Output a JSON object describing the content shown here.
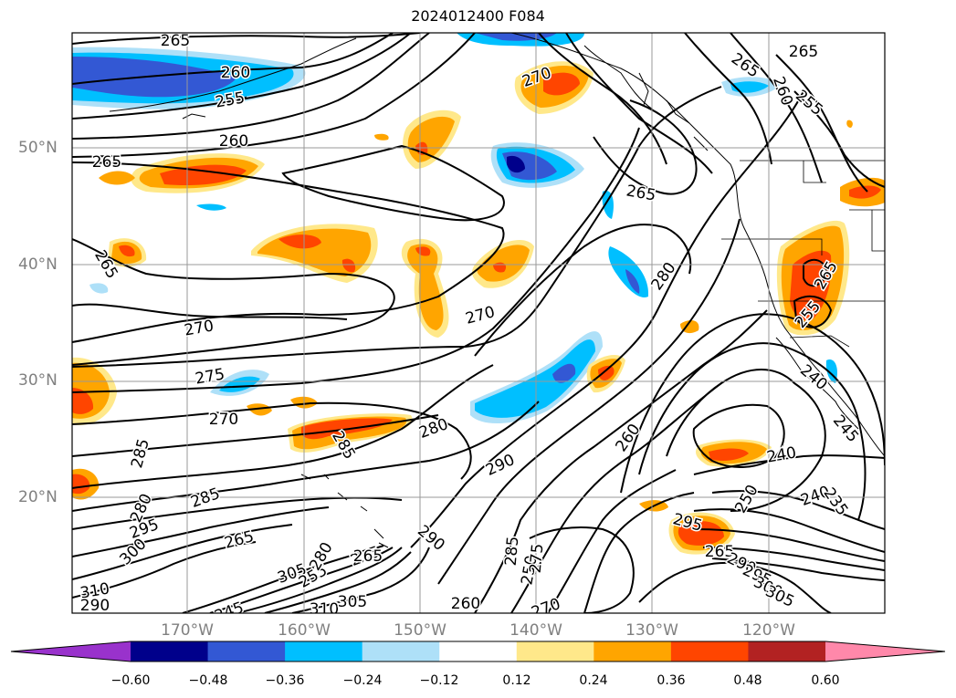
{
  "title": "2024012400 F084",
  "lat_labels": [
    "50°N",
    "40°N",
    "30°N",
    "20°N"
  ],
  "lon_labels": [
    "170°W",
    "160°W",
    "150°W",
    "140°W",
    "130°W",
    "120°W"
  ],
  "colorbar": {
    "ticks": [
      "−0.60",
      "−0.48",
      "−0.36",
      "−0.24",
      "−0.12",
      "0.12",
      "0.24",
      "0.36",
      "0.48",
      "0.60"
    ],
    "colors": [
      "#9932cc",
      "#00008b",
      "#3358d4",
      "#00bfff",
      "#aee0f8",
      "#ffffff",
      "#ffe88a",
      "#ffa500",
      "#ff4500",
      "#b22222",
      "#ff88aa"
    ]
  },
  "contour_labels": [
    "265",
    "260",
    "255",
    "260",
    "265",
    "270",
    "265",
    "260",
    "255",
    "265",
    "265",
    "270",
    "265",
    "280",
    "270",
    "265",
    "255",
    "275",
    "270",
    "285",
    "280",
    "285",
    "290",
    "260",
    "240",
    "245",
    "290",
    "285",
    "240",
    "250",
    "240",
    "235",
    "280",
    "295",
    "300",
    "305",
    "310",
    "290",
    "265",
    "260",
    "270",
    "255",
    "295",
    "280",
    "275",
    "285",
    "250",
    "275",
    "290",
    "295",
    "300",
    "305",
    "245",
    "265",
    "265",
    "310",
    "305"
  ]
}
